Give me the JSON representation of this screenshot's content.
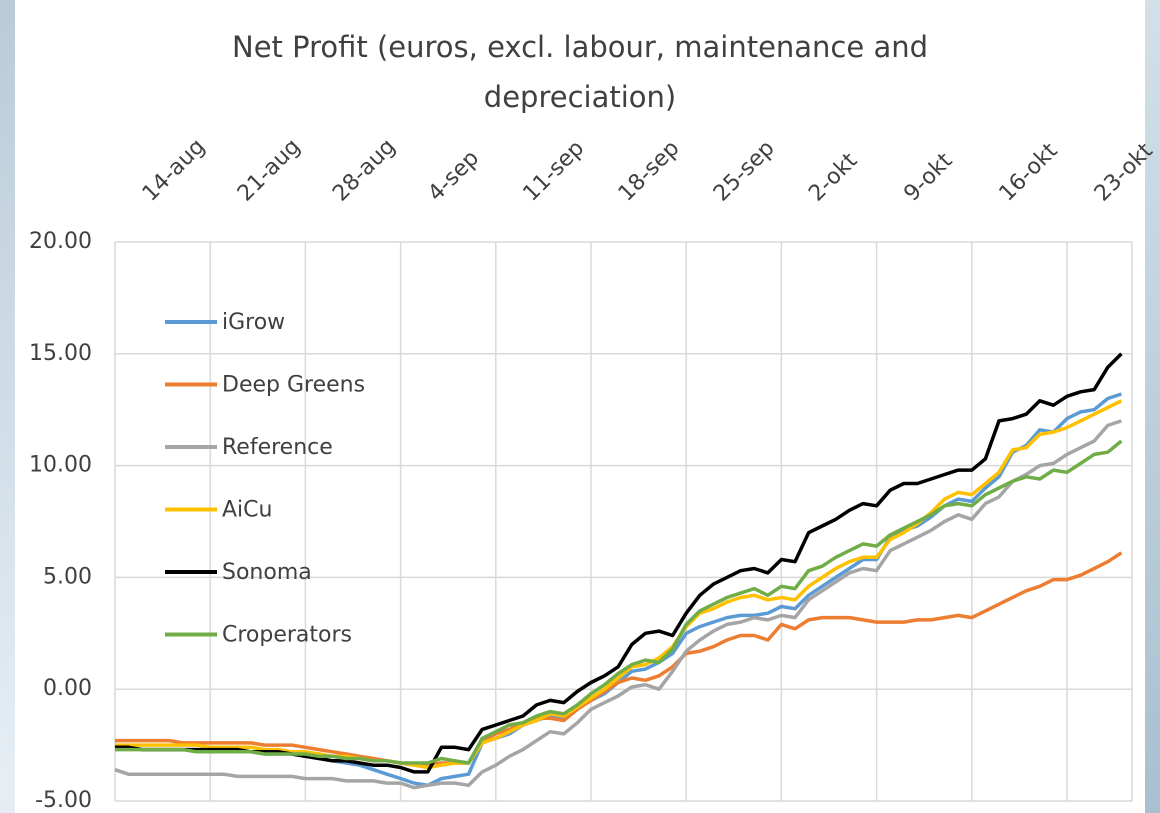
{
  "chart_data": {
    "type": "line",
    "title": "Net Profit (euros, excl. labour, maintenance and depreciation)",
    "categories": [
      "14-aug",
      null,
      null,
      null,
      null,
      null,
      null,
      "21-aug",
      null,
      null,
      null,
      null,
      null,
      null,
      "28-aug",
      null,
      null,
      null,
      null,
      null,
      null,
      "4-sep",
      null,
      null,
      null,
      null,
      null,
      null,
      "11-sep",
      null,
      null,
      null,
      null,
      null,
      null,
      "18-sep",
      null,
      null,
      null,
      null,
      null,
      null,
      "25-sep",
      null,
      null,
      null,
      null,
      null,
      null,
      "2-okt",
      null,
      null,
      null,
      null,
      null,
      null,
      "9-okt",
      null,
      null,
      null,
      null,
      null,
      null,
      "16-okt",
      null,
      null,
      null,
      null,
      null,
      null,
      "23-okt",
      null,
      null,
      null,
      null
    ],
    "ylim": [
      -5,
      20
    ],
    "yticks": [
      {
        "value": -5,
        "label": "-5.00"
      },
      {
        "value": 0,
        "label": "0.00"
      },
      {
        "value": 5,
        "label": "5.00"
      },
      {
        "value": 10,
        "label": "10.00"
      },
      {
        "value": 15,
        "label": "15.00"
      },
      {
        "value": 20,
        "label": "20.00"
      }
    ],
    "grid": true,
    "legend": "upper left",
    "series": [
      {
        "name": "iGrow",
        "color": "#5b9bd5",
        "values": [
          -2.6,
          -2.6,
          -2.7,
          -2.7,
          -2.7,
          -2.7,
          -2.7,
          -2.8,
          -2.8,
          -2.8,
          -2.8,
          -2.9,
          -2.9,
          -2.9,
          -3.0,
          -3.1,
          -3.2,
          -3.3,
          -3.4,
          -3.6,
          -3.8,
          -4.0,
          -4.2,
          -4.3,
          -4.0,
          -3.9,
          -3.8,
          -2.4,
          -2.2,
          -2.0,
          -1.6,
          -1.4,
          -1.2,
          -1.3,
          -0.8,
          -0.5,
          -0.2,
          0.3,
          0.8,
          0.9,
          1.2,
          1.6,
          2.5,
          2.8,
          3.0,
          3.2,
          3.3,
          3.3,
          3.4,
          3.7,
          3.6,
          4.2,
          4.6,
          5.0,
          5.4,
          5.8,
          5.8,
          6.8,
          7.1,
          7.3,
          7.7,
          8.2,
          8.5,
          8.4,
          9.0,
          9.5,
          10.6,
          10.9,
          11.6,
          11.5,
          12.1,
          12.4,
          12.5,
          13.0,
          13.2
        ]
      },
      {
        "name": "Deep Greens",
        "color": "#ed7d31",
        "values": [
          -2.3,
          -2.3,
          -2.3,
          -2.3,
          -2.3,
          -2.4,
          -2.4,
          -2.4,
          -2.4,
          -2.4,
          -2.4,
          -2.5,
          -2.5,
          -2.5,
          -2.6,
          -2.7,
          -2.8,
          -2.9,
          -3.0,
          -3.1,
          -3.2,
          -3.3,
          -3.4,
          -3.4,
          -3.3,
          -3.3,
          -3.3,
          -2.3,
          -2.0,
          -1.8,
          -1.5,
          -1.3,
          -1.3,
          -1.4,
          -0.9,
          -0.5,
          -0.1,
          0.3,
          0.5,
          0.4,
          0.6,
          1.0,
          1.6,
          1.7,
          1.9,
          2.2,
          2.4,
          2.4,
          2.2,
          2.9,
          2.7,
          3.1,
          3.2,
          3.2,
          3.2,
          3.1,
          3.0,
          3.0,
          3.0,
          3.1,
          3.1,
          3.2,
          3.3,
          3.2,
          3.5,
          3.8,
          4.1,
          4.4,
          4.6,
          4.9,
          4.9,
          5.1,
          5.4,
          5.7,
          6.1
        ]
      },
      {
        "name": "Reference",
        "color": "#a5a5a5",
        "values": [
          -3.6,
          -3.8,
          -3.8,
          -3.8,
          -3.8,
          -3.8,
          -3.8,
          -3.8,
          -3.8,
          -3.9,
          -3.9,
          -3.9,
          -3.9,
          -3.9,
          -4.0,
          -4.0,
          -4.0,
          -4.1,
          -4.1,
          -4.1,
          -4.2,
          -4.2,
          -4.4,
          -4.3,
          -4.2,
          -4.2,
          -4.3,
          -3.7,
          -3.4,
          -3.0,
          -2.7,
          -2.3,
          -1.9,
          -2.0,
          -1.5,
          -0.9,
          -0.6,
          -0.3,
          0.1,
          0.2,
          0.0,
          0.8,
          1.7,
          2.2,
          2.6,
          2.9,
          3.0,
          3.2,
          3.1,
          3.3,
          3.2,
          4.0,
          4.4,
          4.8,
          5.2,
          5.4,
          5.3,
          6.2,
          6.5,
          6.8,
          7.1,
          7.5,
          7.8,
          7.6,
          8.3,
          8.6,
          9.3,
          9.6,
          10.0,
          10.1,
          10.5,
          10.8,
          11.1,
          11.8,
          12.0
        ]
      },
      {
        "name": "AiCu",
        "color": "#ffc000",
        "values": [
          -2.5,
          -2.5,
          -2.5,
          -2.5,
          -2.5,
          -2.5,
          -2.5,
          -2.6,
          -2.6,
          -2.6,
          -2.6,
          -2.7,
          -2.7,
          -2.8,
          -2.8,
          -2.9,
          -3.0,
          -3.0,
          -3.1,
          -3.2,
          -3.2,
          -3.3,
          -3.4,
          -3.5,
          -3.4,
          -3.3,
          -3.3,
          -2.4,
          -2.2,
          -1.9,
          -1.6,
          -1.4,
          -1.1,
          -1.2,
          -0.8,
          -0.4,
          0.0,
          0.5,
          1.0,
          1.1,
          1.4,
          1.9,
          2.8,
          3.4,
          3.6,
          3.9,
          4.1,
          4.2,
          4.0,
          4.1,
          4.0,
          4.6,
          5.0,
          5.4,
          5.7,
          5.9,
          5.9,
          6.7,
          7.0,
          7.4,
          7.9,
          8.5,
          8.8,
          8.7,
          9.2,
          9.7,
          10.7,
          10.8,
          11.4,
          11.5,
          11.7,
          12.0,
          12.3,
          12.6,
          12.9
        ]
      },
      {
        "name": "Sonoma",
        "color": "#000000",
        "values": [
          -2.6,
          -2.6,
          -2.7,
          -2.7,
          -2.7,
          -2.7,
          -2.7,
          -2.7,
          -2.7,
          -2.7,
          -2.8,
          -2.8,
          -2.8,
          -2.9,
          -3.0,
          -3.1,
          -3.2,
          -3.2,
          -3.3,
          -3.4,
          -3.4,
          -3.5,
          -3.7,
          -3.7,
          -2.6,
          -2.6,
          -2.7,
          -1.8,
          -1.6,
          -1.4,
          -1.2,
          -0.7,
          -0.5,
          -0.6,
          -0.1,
          0.3,
          0.6,
          1.0,
          2.0,
          2.5,
          2.6,
          2.4,
          3.4,
          4.2,
          4.7,
          5.0,
          5.3,
          5.4,
          5.2,
          5.8,
          5.7,
          7.0,
          7.3,
          7.6,
          8.0,
          8.3,
          8.2,
          8.9,
          9.2,
          9.2,
          9.4,
          9.6,
          9.8,
          9.8,
          10.3,
          12.0,
          12.1,
          12.3,
          12.9,
          12.7,
          13.1,
          13.3,
          13.4,
          14.4,
          15.0
        ]
      },
      {
        "name": "Croperators",
        "color": "#70ad47",
        "values": [
          -2.7,
          -2.7,
          -2.7,
          -2.7,
          -2.7,
          -2.7,
          -2.8,
          -2.8,
          -2.8,
          -2.8,
          -2.8,
          -2.9,
          -2.9,
          -2.9,
          -2.9,
          -3.0,
          -3.0,
          -3.1,
          -3.1,
          -3.2,
          -3.2,
          -3.3,
          -3.3,
          -3.3,
          -3.1,
          -3.2,
          -3.3,
          -2.2,
          -1.9,
          -1.6,
          -1.5,
          -1.2,
          -1.0,
          -1.1,
          -0.7,
          -0.2,
          0.2,
          0.7,
          1.1,
          1.3,
          1.2,
          1.8,
          2.9,
          3.5,
          3.8,
          4.1,
          4.3,
          4.5,
          4.2,
          4.6,
          4.5,
          5.3,
          5.5,
          5.9,
          6.2,
          6.5,
          6.4,
          6.9,
          7.2,
          7.5,
          7.8,
          8.2,
          8.3,
          8.2,
          8.7,
          9.0,
          9.3,
          9.5,
          9.4,
          9.8,
          9.7,
          10.1,
          10.5,
          10.6,
          11.1
        ]
      }
    ]
  }
}
